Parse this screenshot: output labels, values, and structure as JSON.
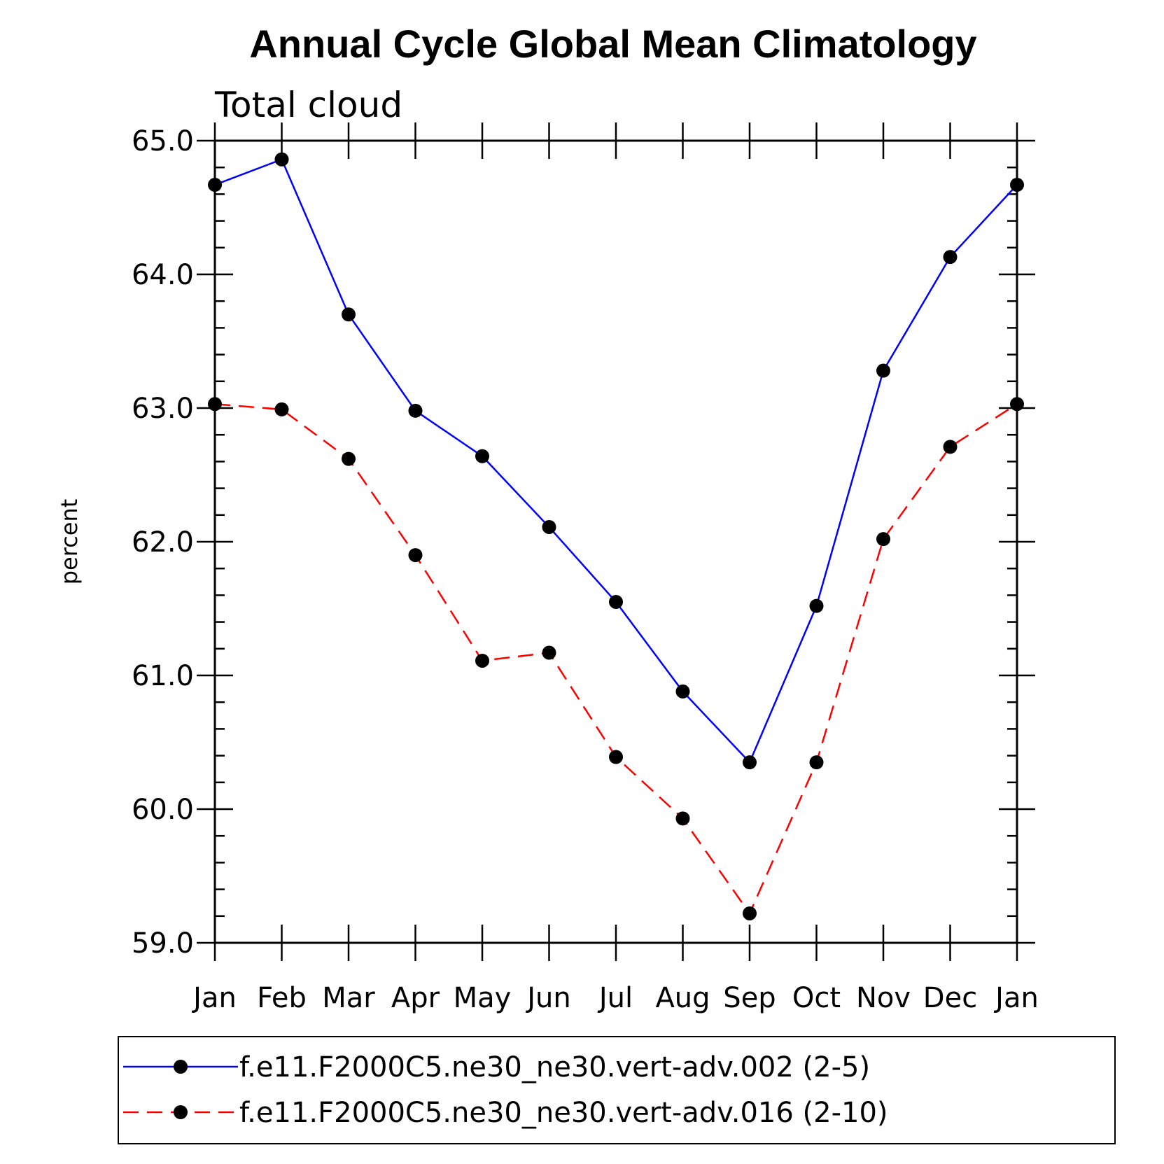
{
  "chart_data": {
    "type": "line",
    "title": "Annual Cycle Global Mean Climatology",
    "subtitle": "Total cloud",
    "xlabel": "",
    "ylabel": "percent",
    "ylim": [
      59.0,
      65.0
    ],
    "yticks": [
      "59.0",
      "60.0",
      "61.0",
      "62.0",
      "63.0",
      "64.0",
      "65.0"
    ],
    "categories": [
      "Jan",
      "Feb",
      "Mar",
      "Apr",
      "May",
      "Jun",
      "Jul",
      "Aug",
      "Sep",
      "Oct",
      "Nov",
      "Dec",
      "Jan"
    ],
    "series": [
      {
        "name": "f.e11.F2000C5.ne30_ne30.vert-adv.002 (2-5)",
        "color": "#0000ff",
        "dash": "solid",
        "values": [
          64.67,
          64.86,
          63.7,
          62.98,
          62.64,
          62.11,
          61.55,
          60.88,
          60.35,
          61.52,
          63.28,
          64.13,
          64.67
        ]
      },
      {
        "name": "f.e11.F2000C5.ne30_ne30.vert-adv.016 (2-10)",
        "color": "#ff0000",
        "dash": "dashed",
        "values": [
          63.03,
          62.99,
          62.62,
          61.9,
          61.11,
          61.17,
          60.39,
          59.93,
          59.22,
          60.35,
          62.02,
          62.71,
          63.03
        ]
      }
    ],
    "legend_position": "bottom",
    "grid": false
  }
}
